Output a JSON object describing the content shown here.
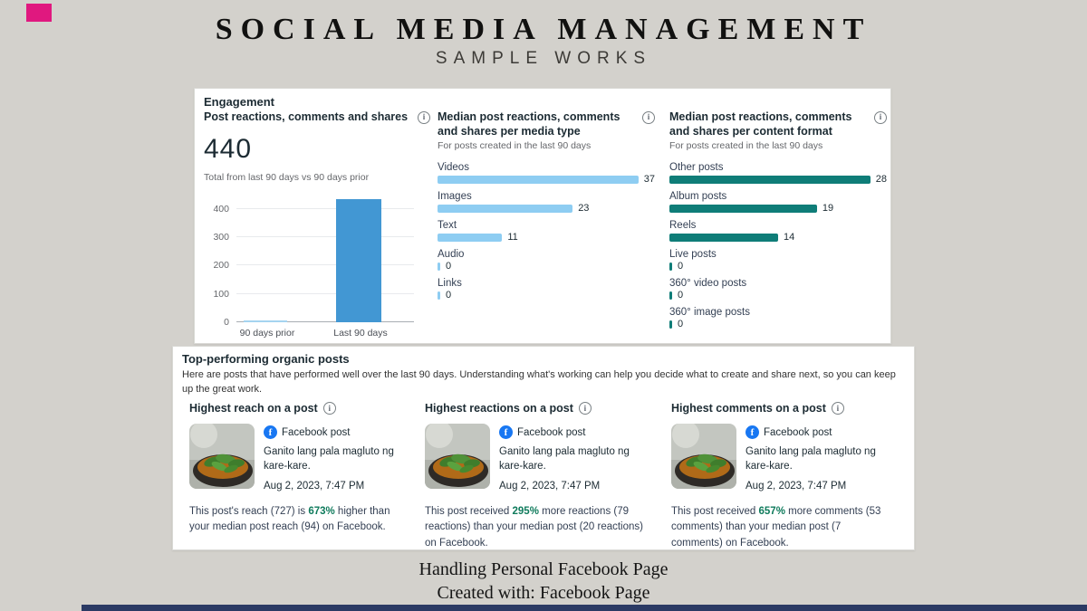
{
  "header": {
    "title": "SOCIAL MEDIA MANAGEMENT",
    "subtitle": "SAMPLE WORKS"
  },
  "engagement": {
    "section_title": "Engagement",
    "reactions": {
      "title": "Post reactions, comments and shares",
      "total": "440",
      "caption": "Total from last 90 days vs 90 days prior"
    }
  },
  "chart_data": [
    {
      "type": "bar",
      "title": "Post reactions, comments and shares",
      "categories": [
        "90 days prior",
        "Last 90 days"
      ],
      "values": [
        5,
        435
      ],
      "yticks": [
        0,
        100,
        200,
        300,
        400
      ],
      "ylim": [
        0,
        450
      ],
      "colors": [
        "#a5d4f0",
        "#4297d3"
      ],
      "note": "Total from last 90 days vs 90 days prior = 440"
    },
    {
      "type": "bar",
      "orientation": "horizontal",
      "title": "Median post reactions, comments and shares per media type",
      "subtitle": "For posts created in the last 90 days",
      "categories": [
        "Videos",
        "Images",
        "Text",
        "Audio",
        "Links"
      ],
      "values": [
        37,
        23,
        11,
        0,
        0
      ],
      "bar_color": "#8ecdf2"
    },
    {
      "type": "bar",
      "orientation": "horizontal",
      "title": "Median post reactions, comments and shares per content format",
      "subtitle": "For posts created in the last 90 days",
      "categories": [
        "Other posts",
        "Album posts",
        "Reels",
        "Live posts",
        "360° video posts",
        "360° image posts"
      ],
      "values": [
        28,
        19,
        14,
        0,
        0,
        0
      ],
      "bar_color": "#0f7d78"
    }
  ],
  "top_posts": {
    "title": "Top-performing organic posts",
    "description": "Here are posts that have performed well over the last 90 days. Understanding what's working can help you decide what to create and share next, so you can keep up the great work.",
    "post": {
      "source": "Facebook post",
      "caption": "Ganito lang pala magluto ng kare-kare.",
      "date": "Aug 2, 2023, 7:47 PM"
    },
    "cards": [
      {
        "title": "Highest reach on a post",
        "summary": {
          "pre": "This post's reach (727) is ",
          "highlight": "673%",
          "post": " higher than your median post reach (94) on Facebook."
        }
      },
      {
        "title": "Highest reactions on a post",
        "summary": {
          "pre": "This post received ",
          "highlight": "295%",
          "post": " more reactions (79 reactions) than your median post (20 reactions) on Facebook."
        }
      },
      {
        "title": "Highest comments on a post",
        "summary": {
          "pre": "This post received ",
          "highlight": "657%",
          "post": " more comments (53 comments) than your median post (7 comments) on Facebook."
        }
      }
    ]
  },
  "footer": {
    "line1": "Handling Personal Facebook Page",
    "line2": "Created with: Facebook Page"
  },
  "colors": {
    "background": "#d3d1cc",
    "accent_pink": "#e0187f",
    "bottom_bar_navy": "#2b3a64",
    "facebook_blue": "#1877f2",
    "positive_green": "#0f7b5c",
    "column_bar_blue": "#4297d3",
    "hbar_light_blue": "#8ecdf2",
    "hbar_teal": "#0f7d78"
  }
}
